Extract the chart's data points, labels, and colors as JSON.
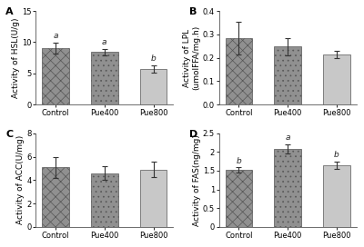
{
  "panels": [
    {
      "label": "A",
      "ylabel": "Activity of HSL(U/g)",
      "ylim": [
        0,
        15
      ],
      "yticks": [
        0,
        5,
        10,
        15
      ],
      "categories": [
        "Control",
        "Pue400",
        "Pue800"
      ],
      "values": [
        9.1,
        8.4,
        5.7
      ],
      "errors": [
        0.85,
        0.5,
        0.6
      ],
      "sig_labels": [
        "a",
        "a",
        "b"
      ],
      "hatch_styles": [
        "xx",
        "oo",
        "--"
      ],
      "face_colors": [
        "#8a8a8a",
        "#9a9a9a",
        "#c0c0c0"
      ]
    },
    {
      "label": "B",
      "ylabel": "Activity of LPL\n(umolFFA/mg.h)",
      "ylim": [
        0.0,
        0.4
      ],
      "yticks": [
        0.0,
        0.1,
        0.2,
        0.3,
        0.4
      ],
      "categories": [
        "Control",
        "Pue400",
        "Pue800"
      ],
      "values": [
        0.285,
        0.248,
        0.213
      ],
      "errors": [
        0.07,
        0.038,
        0.016
      ],
      "sig_labels": [
        "",
        "",
        ""
      ],
      "hatch_styles": [
        "xx",
        "oo",
        "--"
      ],
      "face_colors": [
        "#8a8a8a",
        "#9a9a9a",
        "#c0c0c0"
      ]
    },
    {
      "label": "C",
      "ylabel": "Activity of ACC(U/mg)",
      "ylim": [
        0,
        8
      ],
      "yticks": [
        0,
        2,
        4,
        6,
        8
      ],
      "categories": [
        "Control",
        "Pue400",
        "Pue800"
      ],
      "values": [
        5.1,
        4.6,
        4.9
      ],
      "errors": [
        0.9,
        0.6,
        0.65
      ],
      "sig_labels": [
        "",
        "",
        ""
      ],
      "hatch_styles": [
        "xx",
        "oo",
        "--"
      ],
      "face_colors": [
        "#8a8a8a",
        "#9a9a9a",
        "#c0c0c0"
      ]
    },
    {
      "label": "D",
      "ylabel": "Activity of FAS(ng/mg)",
      "ylim": [
        0.0,
        2.5
      ],
      "yticks": [
        0.0,
        0.5,
        1.0,
        1.5,
        2.0,
        2.5
      ],
      "categories": [
        "Control",
        "Pue400",
        "Pue800"
      ],
      "values": [
        1.52,
        2.08,
        1.65
      ],
      "errors": [
        0.07,
        0.13,
        0.1
      ],
      "sig_labels": [
        "b",
        "a",
        "b"
      ],
      "hatch_styles": [
        "xx",
        "oo",
        "--"
      ],
      "face_colors": [
        "#8a8a8a",
        "#9a9a9a",
        "#c0c0c0"
      ]
    }
  ],
  "background_color": "#ffffff",
  "bar_edge_color": "#555555",
  "error_color": "#333333",
  "font_size": 6.0,
  "ylabel_font_size": 6.5,
  "sig_font_size": 6.5,
  "panel_label_font_size": 8
}
